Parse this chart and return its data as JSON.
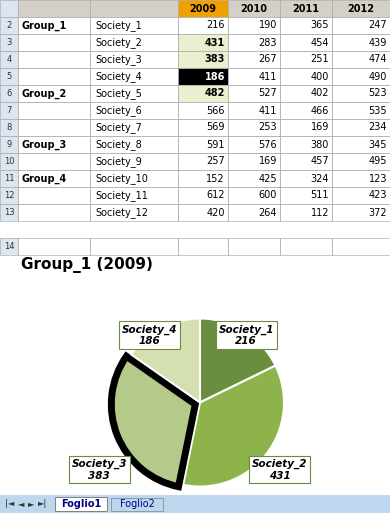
{
  "title": "Group_1 (2009)",
  "pie_labels": [
    "Society_1",
    "Society_2",
    "Society_3",
    "Society_4"
  ],
  "pie_values": [
    216,
    431,
    383,
    186
  ],
  "pie_colors": [
    "#6b8e3e",
    "#8db34a",
    "#b5c98a",
    "#d4e0b0"
  ],
  "explode_index": 2,
  "explode_amount": 0.06,
  "table_col_header": [
    "",
    "",
    "2009",
    "2010",
    "2011",
    "2012"
  ],
  "table_row_groups": [
    {
      "group": "Group_1",
      "rows": [
        [
          "Society_1",
          216,
          190,
          365,
          247
        ],
        [
          "Society_2",
          431,
          283,
          454,
          439
        ],
        [
          "Society_3",
          383,
          267,
          251,
          474
        ],
        [
          "Society_4",
          186,
          411,
          400,
          490
        ]
      ]
    },
    {
      "group": "Group_2",
      "rows": [
        [
          "Society_5",
          482,
          527,
          402,
          523
        ],
        [
          "Society_6",
          566,
          411,
          466,
          535
        ],
        [
          "Society_7",
          569,
          253,
          169,
          234
        ]
      ]
    },
    {
      "group": "Group_3",
      "rows": [
        [
          "Society_8",
          591,
          576,
          380,
          345
        ],
        [
          "Society_9",
          257,
          169,
          457,
          495
        ]
      ]
    },
    {
      "group": "Group_4",
      "rows": [
        [
          "Society_10",
          152,
          425,
          324,
          123
        ],
        [
          "Society_11",
          612,
          600,
          511,
          423
        ],
        [
          "Society_12",
          420,
          264,
          112,
          372
        ]
      ]
    }
  ],
  "bg_color": "#ffffff",
  "grid_color": "#b0b0b0",
  "header_bg_orange": "#f0a000",
  "header_bg_gray": "#d4d0c8",
  "row_num_bg": "#d4d0c8",
  "highlight_cell_bg": "#e8f0d0",
  "selected_cell_bg": "#000000",
  "selected_cell_fg": "#ffffff",
  "highlight_col_idx": 2,
  "highlight_row_indices": [
    1,
    2,
    3,
    4
  ],
  "selected_row_idx": 3,
  "font_size_table": 7,
  "font_size_title": 11,
  "font_size_pie_label": 7.5,
  "tab_bg": "#bdd7ee",
  "tab_active_text": "#00008b",
  "row_num_col_bg": "#dce6f1",
  "corner_bg": "#dce6f1"
}
